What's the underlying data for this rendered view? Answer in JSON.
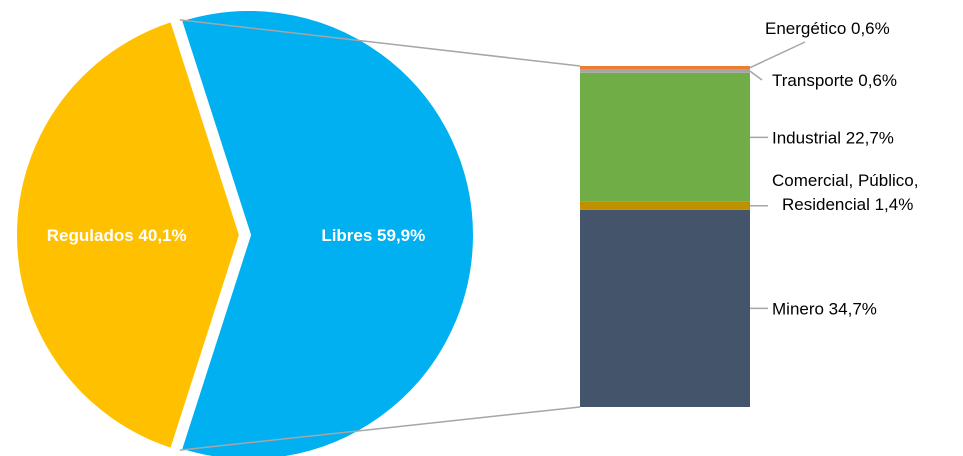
{
  "chart_data": {
    "type": "pie",
    "subtype": "bar-of-pie",
    "title": "",
    "pie": {
      "slices": [
        {
          "name": "Regulados",
          "value": 40.1,
          "label": "Regulados 40,1%",
          "color": "#ffc000"
        },
        {
          "name": "Libres",
          "value": 59.9,
          "label": "Libres 59,9%",
          "color": "#00b0f0",
          "exploded": true
        }
      ]
    },
    "breakdown_bar": {
      "of": "Libres",
      "segments_bottom_to_top": [
        {
          "name": "Minero",
          "value": 34.7,
          "label_lines": [
            "Minero 34,7%"
          ],
          "color": "#44546a"
        },
        {
          "name": "Comercial, Público, Residencial",
          "value": 1.4,
          "label_lines": [
            "Comercial, Público,",
            "Residencial 1,4%"
          ],
          "color": "#bf9000"
        },
        {
          "name": "Industrial",
          "value": 22.7,
          "label_lines": [
            "Industrial 22,7%"
          ],
          "color": "#70ad47"
        },
        {
          "name": "Transporte",
          "value": 0.6,
          "label_lines": [
            "Transporte 0,6%"
          ],
          "color": "#a5a5a5"
        },
        {
          "name": "Energético",
          "value": 0.6,
          "label_lines": [
            "Energético 0,6%"
          ],
          "color": "#ed7d31"
        }
      ]
    },
    "legend": "none"
  }
}
